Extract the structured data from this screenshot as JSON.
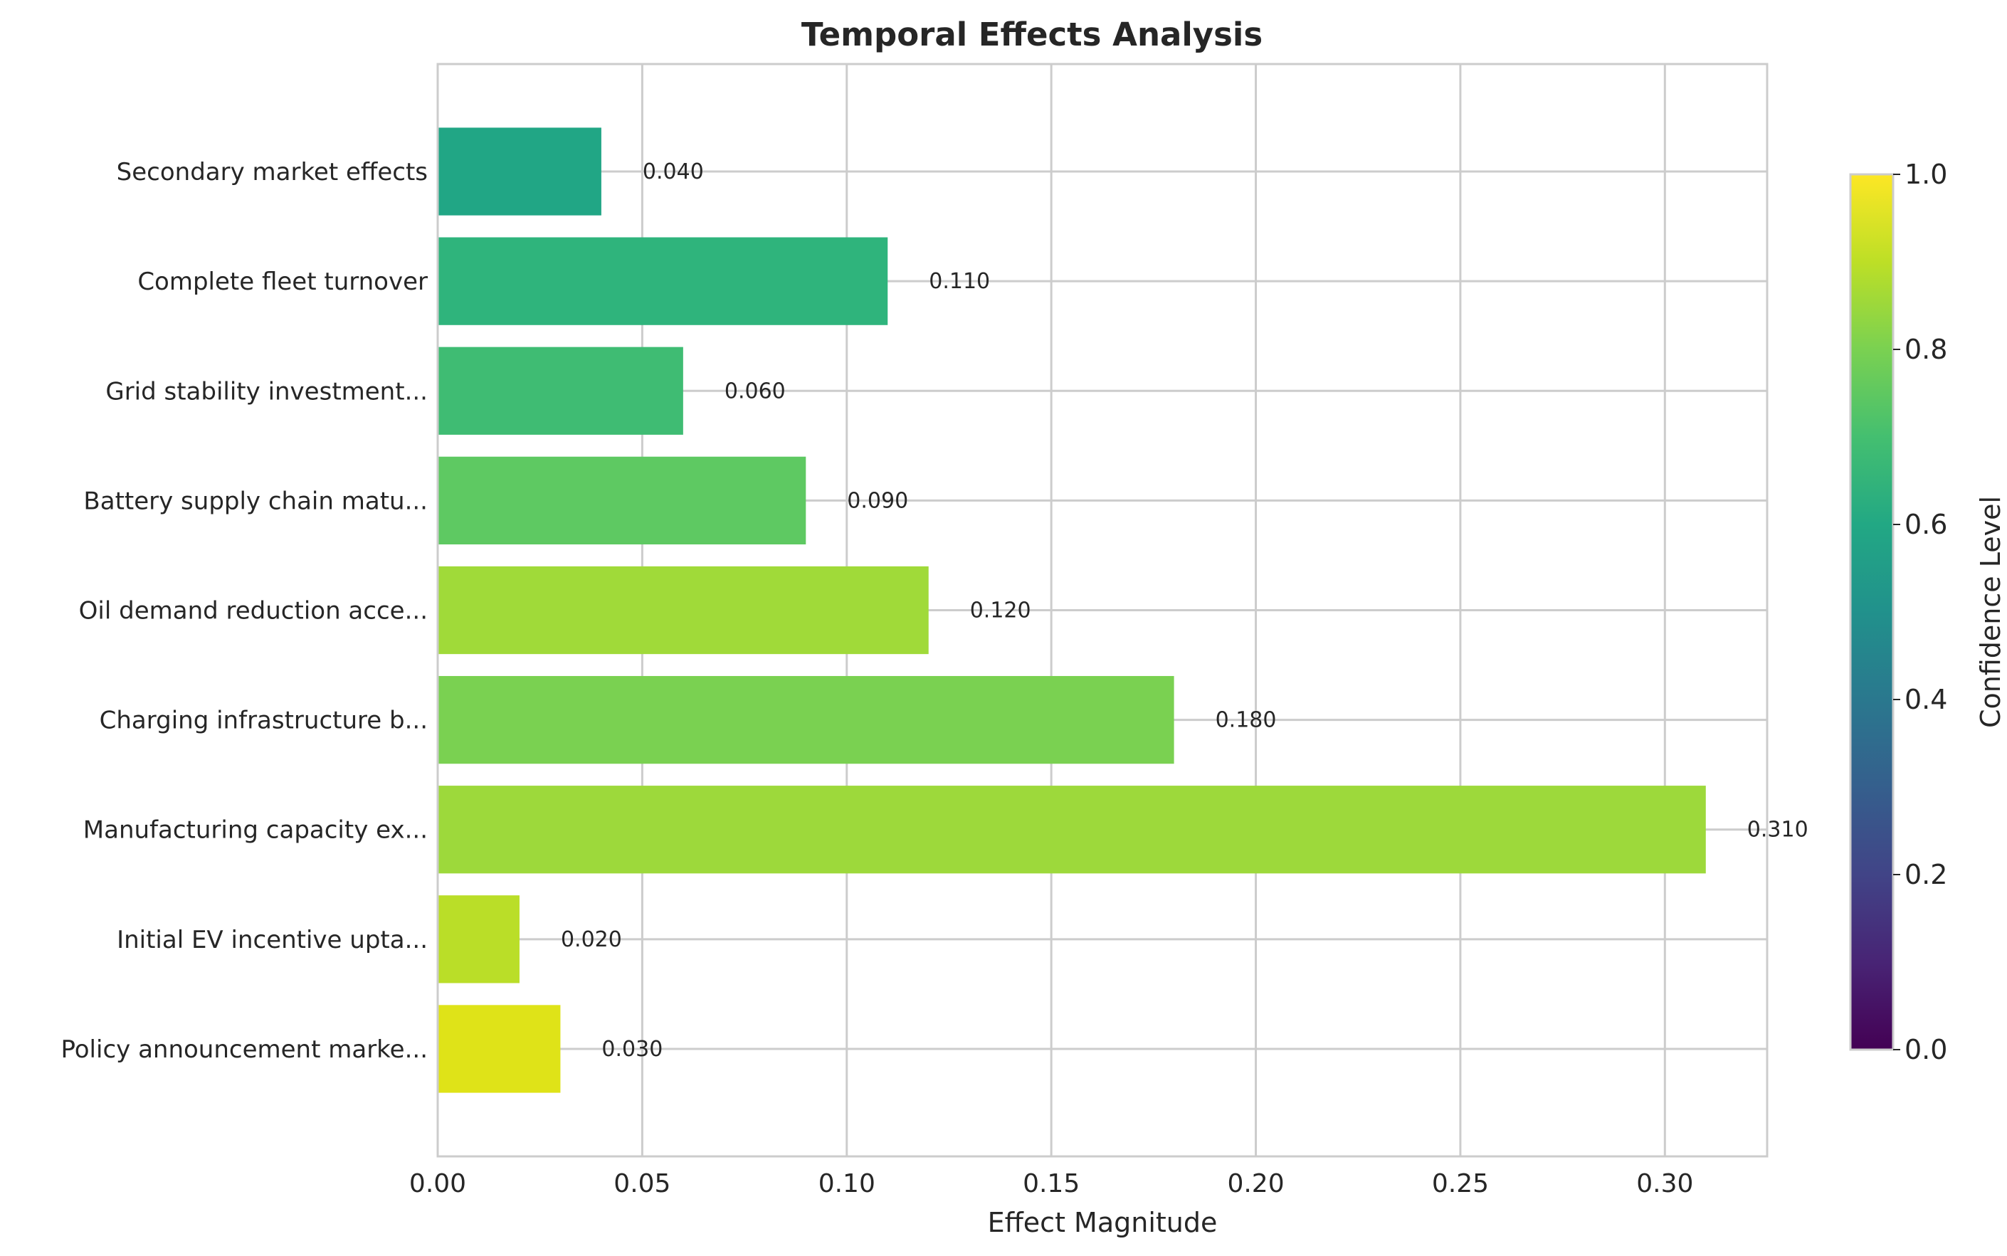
{
  "chart_data": {
    "type": "bar",
    "orientation": "horizontal",
    "title": "Temporal Effects Analysis",
    "xlabel": "Effect Magnitude",
    "ylabel": "",
    "xlim": [
      0,
      0.325
    ],
    "xticks": [
      "0.00",
      "0.05",
      "0.10",
      "0.15",
      "0.20",
      "0.25",
      "0.30"
    ],
    "xtick_values": [
      0,
      0.05,
      0.1,
      0.15,
      0.2,
      0.25,
      0.3
    ],
    "grid": true,
    "categories": [
      "Policy announcement marke...",
      "Initial EV incentive upta...",
      "Manufacturing capacity ex...",
      "Charging infrastructure b...",
      "Oil demand reduction acce...",
      "Battery supply chain matu...",
      "Grid stability investment...",
      "Complete fleet turnover",
      "Secondary market effects"
    ],
    "values": [
      0.03,
      0.02,
      0.31,
      0.18,
      0.12,
      0.09,
      0.06,
      0.11,
      0.04
    ],
    "value_labels": [
      "0.030",
      "0.020",
      "0.310",
      "0.180",
      "0.120",
      "0.090",
      "0.060",
      "0.110",
      "0.040"
    ],
    "bar_colors": [
      "#dfe318",
      "#bade28",
      "#9dd93b",
      "#7ad151",
      "#a0da39",
      "#5ec962",
      "#3fbc73",
      "#2fb47c",
      "#21a685"
    ],
    "colorbar": {
      "label": "Confidence Level",
      "colormap": "viridis",
      "range": [
        0,
        1
      ],
      "ticks": [
        "0.0",
        "0.2",
        "0.4",
        "0.6",
        "0.8",
        "1.0"
      ],
      "tick_values": [
        0,
        0.2,
        0.4,
        0.6,
        0.8,
        1.0
      ]
    }
  }
}
